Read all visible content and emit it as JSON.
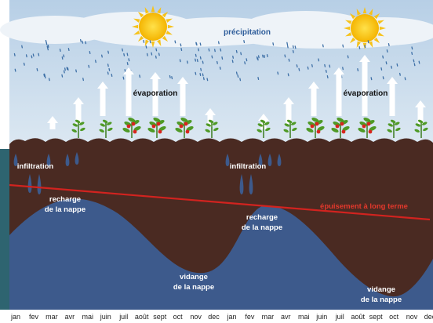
{
  "labels": {
    "precipitation": "précipitation",
    "evaporation": "évaporation",
    "infiltration": "infiltration",
    "recharge_line1": "recharge",
    "recharge_line2": "de la nappe",
    "vidange_line1": "vidange",
    "vidange_line2": "de la nappe",
    "depletion": "épuisement à long terme"
  },
  "months": [
    "jan",
    "fev",
    "mar",
    "avr",
    "mai",
    "juin",
    "juil",
    "août",
    "sept",
    "oct",
    "nov",
    "dec",
    "jan",
    "fev",
    "mar",
    "avr",
    "mai",
    "juin",
    "juil",
    "août",
    "sept",
    "oct",
    "nov",
    "dec"
  ],
  "icons": {
    "sun": "sun-icon",
    "rain": "rain-drop-icon",
    "plant": "tomato-plant-icon",
    "arrow": "evaporation-arrow-icon"
  },
  "colors": {
    "sky": "#c9dbeb",
    "cloud": "#e9eff5",
    "soil": "#4a2a22",
    "aquifer": "#3d5a8c",
    "depletion_line": "#d2231f",
    "depletion_text": "#e4382c",
    "left_accent": "#2e6470"
  }
}
